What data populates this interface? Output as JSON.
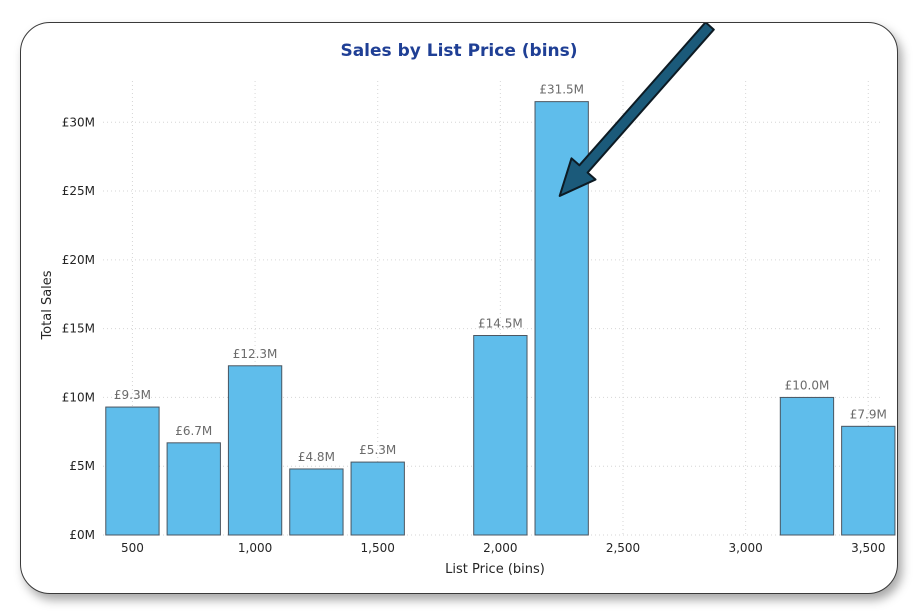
{
  "chart_data": {
    "type": "bar",
    "title": "Sales by List Price (bins)",
    "xlabel": "List Price (bins)",
    "ylabel": "Total Sales",
    "x": [
      500,
      750,
      1000,
      1250,
      1500,
      2000,
      2250,
      3250,
      3500
    ],
    "values": [
      9.3,
      6.7,
      12.3,
      4.8,
      5.3,
      14.5,
      31.5,
      10.0,
      7.9
    ],
    "data_labels": [
      "£9.3M",
      "£6.7M",
      "£12.3M",
      "£4.8M",
      "£5.3M",
      "£14.5M",
      "£31.5M",
      "£10.0M",
      "£7.9M"
    ],
    "x_ticks": [
      500,
      1000,
      1500,
      2000,
      2500,
      3000,
      3500
    ],
    "x_tick_labels": [
      "500",
      "1,000",
      "1,500",
      "2,000",
      "2,500",
      "3,000",
      "3,500"
    ],
    "y_ticks": [
      0,
      5,
      10,
      15,
      20,
      25,
      30
    ],
    "y_tick_labels": [
      "£0M",
      "£5M",
      "£10M",
      "£15M",
      "£20M",
      "£25M",
      "£30M"
    ],
    "xlim": [
      380,
      3560
    ],
    "ylim": [
      0,
      33
    ],
    "bin_width": 250,
    "grid": true,
    "bar_color": "#5fbdeb",
    "title_color": "#1f3f95",
    "annotation": {
      "type": "arrow",
      "color": "#1b5a7a",
      "points_to": {
        "x": 2250,
        "y": 24.5
      }
    }
  }
}
